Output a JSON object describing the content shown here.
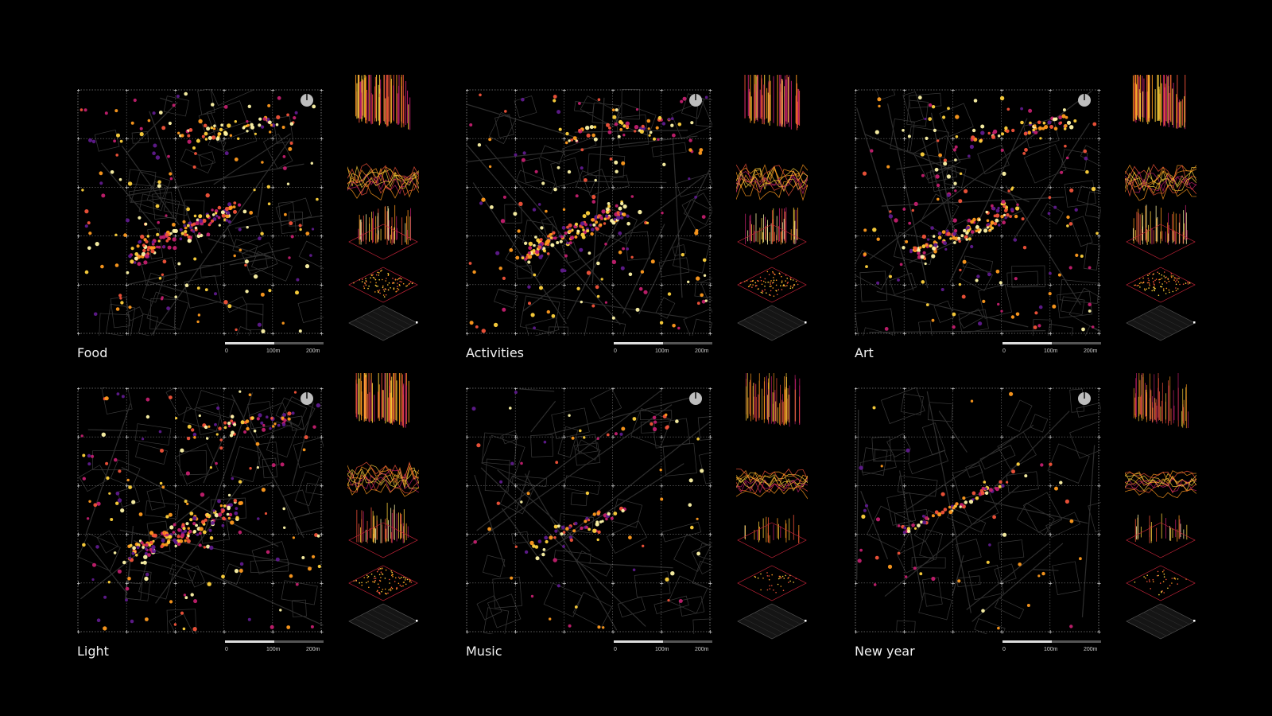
{
  "scale": {
    "labels": [
      "0",
      "100m",
      "200m"
    ]
  },
  "colors": {
    "background": "#000000",
    "grid": "#d8d8d8",
    "streets": "#3a3a3a",
    "palette": [
      "#fff6a8",
      "#ffd23c",
      "#ff9a1e",
      "#f2533a",
      "#c21f6e",
      "#5f1a8c"
    ]
  },
  "panels": [
    {
      "title": "Food",
      "density": 1.0,
      "pattern": "spread"
    },
    {
      "title": "Activities",
      "density": 1.0,
      "pattern": "spread"
    },
    {
      "title": "Art",
      "density": 0.95,
      "pattern": "spread"
    },
    {
      "title": "Light",
      "density": 1.0,
      "pattern": "spread"
    },
    {
      "title": "Music",
      "density": 0.35,
      "pattern": "sparse"
    },
    {
      "title": "New year",
      "density": 0.3,
      "pattern": "street"
    }
  ]
}
